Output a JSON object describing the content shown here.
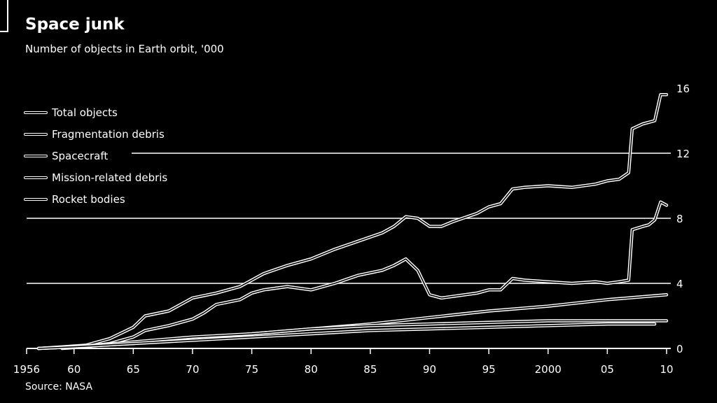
{
  "header": {
    "title": "Space junk",
    "subtitle": "Number of objects in Earth orbit, '000"
  },
  "footer": {
    "source": "Source: NASA"
  },
  "chart_data": {
    "type": "line",
    "title": "Space junk",
    "subtitle": "Number of objects in Earth orbit, '000",
    "xlabel": "",
    "ylabel": "",
    "xlim": [
      1956,
      2010
    ],
    "ylim": [
      0,
      16
    ],
    "x_ticks": [
      1956,
      1960,
      1965,
      1970,
      1975,
      1980,
      1985,
      1990,
      1995,
      2000,
      2005,
      2010
    ],
    "x_tick_labels": [
      "1956",
      "60",
      "65",
      "70",
      "75",
      "80",
      "85",
      "90",
      "95",
      "2000",
      "05",
      "10"
    ],
    "y_ticks": [
      0,
      4,
      8,
      12,
      16
    ],
    "y_axis_side": "right",
    "grid": true,
    "legend_position": "top-left",
    "series": [
      {
        "name": "Total objects",
        "x": [
          1957,
          1959,
          1961,
          1963,
          1965,
          1966,
          1968,
          1970,
          1972,
          1974,
          1975,
          1976,
          1978,
          1980,
          1982,
          1984,
          1986,
          1987,
          1988,
          1989,
          1990,
          1991,
          1992,
          1994,
          1995,
          1996,
          1997,
          1998,
          2000,
          2002,
          2004,
          2005,
          2006,
          2006.8,
          2007.1,
          2008,
          2008.5,
          2009,
          2009.5,
          2010
        ],
        "y": [
          0,
          0.1,
          0.2,
          0.6,
          1.3,
          2.0,
          2.3,
          3.1,
          3.4,
          3.8,
          4.2,
          4.6,
          5.1,
          5.5,
          6.1,
          6.6,
          7.1,
          7.5,
          8.1,
          8.0,
          7.5,
          7.5,
          7.8,
          8.3,
          8.7,
          8.9,
          9.8,
          9.9,
          10.0,
          9.9,
          10.1,
          10.3,
          10.4,
          10.8,
          13.5,
          13.8,
          13.9,
          14.0,
          15.6,
          15.6
        ]
      },
      {
        "name": "Fragmentation debris",
        "x": [
          1959,
          1961,
          1963,
          1965,
          1966,
          1968,
          1970,
          1971,
          1972,
          1974,
          1975,
          1976,
          1978,
          1980,
          1982,
          1984,
          1986,
          1987,
          1988,
          1989,
          1990,
          1991,
          1992,
          1994,
          1995,
          1996,
          1997,
          1998,
          2000,
          2002,
          2004,
          2005,
          2006,
          2006.8,
          2007.1,
          2008,
          2008.5,
          2009,
          2009.5,
          2010
        ],
        "y": [
          0,
          0.1,
          0.3,
          0.7,
          1.1,
          1.4,
          1.8,
          2.2,
          2.7,
          3.0,
          3.4,
          3.6,
          3.8,
          3.6,
          4.0,
          4.5,
          4.8,
          5.1,
          5.5,
          4.8,
          3.3,
          3.1,
          3.2,
          3.4,
          3.6,
          3.6,
          4.3,
          4.2,
          4.1,
          4.0,
          4.1,
          4.0,
          4.1,
          4.2,
          7.3,
          7.5,
          7.6,
          7.9,
          9.0,
          8.8
        ]
      },
      {
        "name": "Spacecraft",
        "x": [
          1957,
          1960,
          1965,
          1970,
          1975,
          1980,
          1985,
          1990,
          1995,
          2000,
          2005,
          2010
        ],
        "y": [
          0,
          0.1,
          0.3,
          0.6,
          0.9,
          1.2,
          1.5,
          1.9,
          2.3,
          2.6,
          3.0,
          3.3
        ]
      },
      {
        "name": "Mission-related debris",
        "x": [
          1957,
          1960,
          1965,
          1970,
          1975,
          1980,
          1985,
          1990,
          1995,
          2000,
          2005,
          2010
        ],
        "y": [
          0,
          0.1,
          0.4,
          0.7,
          0.9,
          1.2,
          1.4,
          1.5,
          1.6,
          1.7,
          1.7,
          1.7
        ]
      },
      {
        "name": "Rocket bodies",
        "x": [
          1957,
          1960,
          1965,
          1970,
          1975,
          1980,
          1985,
          1990,
          1995,
          2000,
          2005,
          2009
        ],
        "y": [
          0,
          0.1,
          0.3,
          0.5,
          0.7,
          0.9,
          1.1,
          1.2,
          1.3,
          1.4,
          1.5,
          1.5
        ]
      }
    ]
  }
}
